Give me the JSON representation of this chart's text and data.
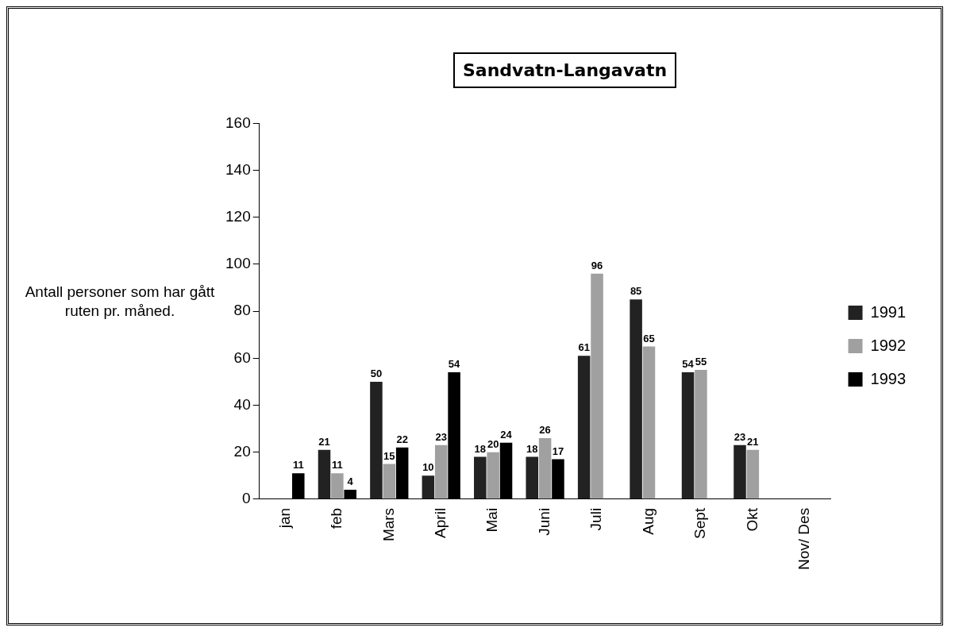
{
  "chart_data": {
    "type": "bar",
    "title": "Sandvatn-Langavatn",
    "ylabel": "Antall personer som har gått ruten pr. måned.",
    "categories": [
      "jan",
      "feb",
      "Mars",
      "April",
      "Mai",
      "Juni",
      "Juli",
      "Aug",
      "Sept",
      "Okt",
      "Nov/ Des"
    ],
    "series": [
      {
        "name": "1991",
        "color": "#222222",
        "values": [
          null,
          21,
          50,
          10,
          18,
          18,
          61,
          85,
          54,
          23,
          null
        ]
      },
      {
        "name": "1992",
        "color": "#a0a0a0",
        "values": [
          null,
          11,
          15,
          23,
          20,
          26,
          96,
          65,
          55,
          21,
          null
        ]
      },
      {
        "name": "1993",
        "color": "#000000",
        "values": [
          11,
          4,
          22,
          54,
          24,
          17,
          null,
          null,
          null,
          null,
          null
        ]
      }
    ],
    "ylim": [
      0,
      160
    ],
    "yticks": [
      0,
      20,
      40,
      60,
      80,
      100,
      120,
      140,
      160
    ],
    "grid": false,
    "legend": "right",
    "data_labels": true
  }
}
